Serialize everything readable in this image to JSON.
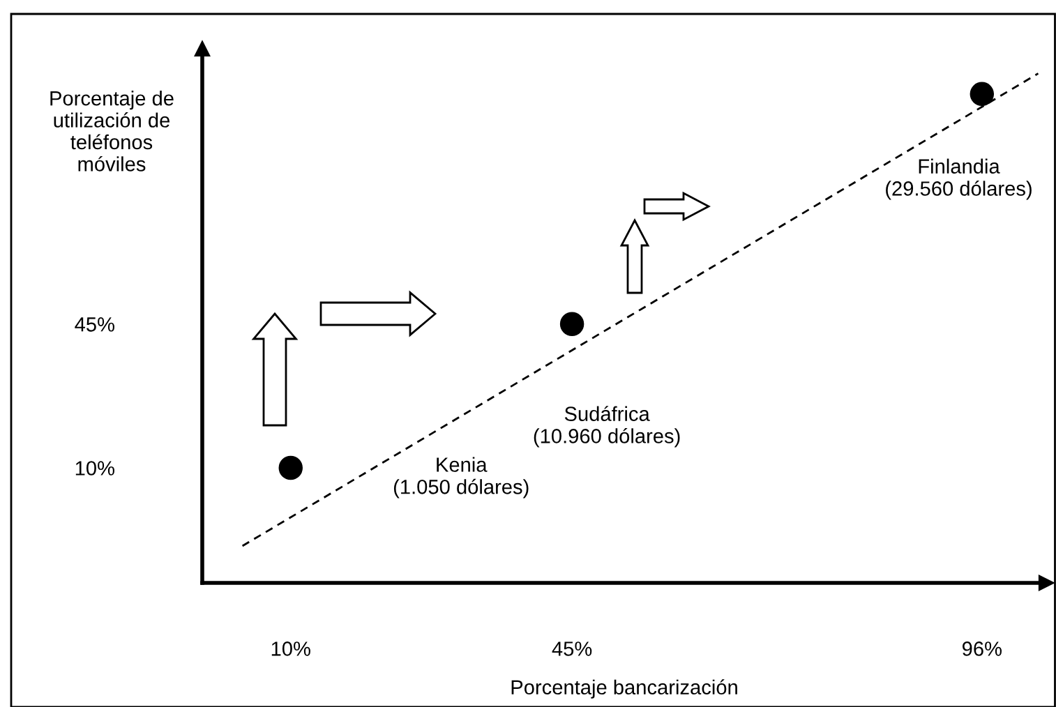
{
  "chart_data": {
    "type": "scatter",
    "xlabel": "Porcentaje bancarización",
    "ylabel": "Porcentaje de\nutilización de\nteléfonos\nmóviles",
    "x": [
      10,
      45,
      96
    ],
    "series": [
      {
        "color": "#000000",
        "marker": "circle",
        "values": [
          10,
          45,
          101
        ]
      },
      {
        "type": "line",
        "color": "#000000",
        "marker": "none",
        "line_style": "dashed",
        "x": [
          4,
          103
        ],
        "values": [
          -9,
          106
        ]
      }
    ],
    "annotations": [
      "Kenia\n(1.050 dólares)",
      "Sudáfrica\n(10.960 dólares)",
      "Finlandia\n(29.560 dólares)"
    ],
    "xlim": [
      -1,
      104
    ],
    "ylim": [
      -18,
      112
    ],
    "xticks": [
      {
        "value": 10,
        "label": "10%"
      },
      {
        "value": 45,
        "label": "45%"
      },
      {
        "value": 96,
        "label": "96%"
      }
    ],
    "yticks": [
      {
        "value": 10,
        "label": "10%"
      },
      {
        "value": 45,
        "label": "45%"
      }
    ],
    "grid": false
  }
}
